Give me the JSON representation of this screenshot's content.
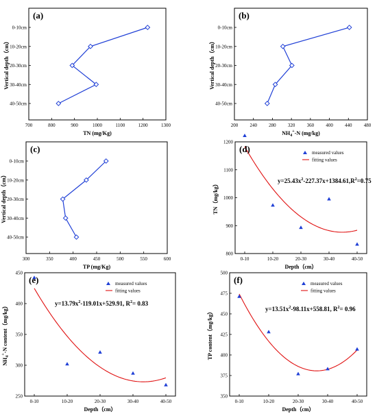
{
  "chart_data": [
    {
      "id": "a",
      "type": "line",
      "title": "(a)",
      "xlabel": "TN (mg/Kg)",
      "ylabel": "Vertical depth（cm）",
      "xlim": [
        700,
        1300
      ],
      "xticks": [
        "700",
        "800",
        "900",
        "1000",
        "1100",
        "1200",
        "1300"
      ],
      "categories": [
        "0-10cm",
        "10-20cm",
        "20-30cm",
        "30-40cm",
        "40-50cm"
      ],
      "values": [
        1220,
        970,
        890,
        995,
        830
      ]
    },
    {
      "id": "b",
      "type": "line",
      "title": "(b)",
      "xlabel": "NH4+-N (mg/kg)",
      "xlabel_main": "NH",
      "xlabel_sub": "4",
      "xlabel_sup": "+",
      "xlabel_rest": "-N (mg/kg)",
      "ylabel": "Vertical depth（cm）",
      "xlim": [
        200,
        480
      ],
      "xticks": [
        "200",
        "240",
        "280",
        "320",
        "360",
        "400",
        "440",
        "480"
      ],
      "categories": [
        "0-10cm",
        "10-20cm",
        "20-30cm",
        "30-40cm",
        "40-50cm"
      ],
      "values": [
        442,
        302,
        321,
        286,
        269
      ]
    },
    {
      "id": "c",
      "type": "line",
      "title": "(c)",
      "xlabel": "TP (mg/Kg)",
      "ylabel": "Vertical depth（cm）",
      "xlim": [
        300,
        600
      ],
      "xticks": [
        "300",
        "350",
        "400",
        "450",
        "500",
        "550",
        "600"
      ],
      "categories": [
        "0-10cm",
        "10-20cm",
        "20-30cm",
        "30-40cm",
        "40-50cm"
      ],
      "values": [
        470,
        428,
        378,
        384,
        407
      ]
    },
    {
      "id": "d",
      "type": "scatter",
      "title": "(d)",
      "xlabel": "Depth（cm）",
      "ylabel": "TN（mg/kg）",
      "ylim": [
        800,
        1200
      ],
      "yticks": [
        "800",
        "900",
        "1000",
        "1100",
        "1200"
      ],
      "categories": [
        "0-10",
        "10-20",
        "20-30",
        "30-40",
        "40-50"
      ],
      "values": [
        1222,
        973,
        893,
        995,
        833
      ],
      "legend": [
        "measured values",
        "fitting values"
      ],
      "equation": {
        "main": "y=25.43x",
        "sup": "2",
        "rest": "-227.37x+1384.61,R",
        "sup2": "2",
        "rest2": "=0.75"
      },
      "fit": {
        "a": 25.43,
        "b": -227.37,
        "c": 1384.61
      }
    },
    {
      "id": "e",
      "type": "scatter",
      "title": "(e)",
      "xlabel": "Depth（cm）",
      "ylabel_main": "NH",
      "ylabel_sub": "4",
      "ylabel_sup": "+",
      "ylabel_rest": "-N content（mg/kg）",
      "ylim": [
        250,
        450
      ],
      "yticks": [
        "250",
        "300",
        "350",
        "400",
        "450"
      ],
      "categories": [
        "0-10",
        "10-20",
        "20-30",
        "30-40",
        "40-50"
      ],
      "values": [
        442,
        302,
        321,
        287,
        268
      ],
      "legend": [
        "measured values",
        "fitting values"
      ],
      "equation": {
        "main": "y=13.79x",
        "sup": "2",
        "rest": "-119.01x+529.91, R",
        "sup2": "2",
        "rest2": "= 0.83"
      },
      "fit": {
        "a": 13.79,
        "b": -119.01,
        "c": 529.91
      }
    },
    {
      "id": "f",
      "type": "scatter",
      "title": "(f)",
      "xlabel": "Depth（cm）",
      "ylabel": "TP content（mg/kg）",
      "ylim": [
        350,
        500
      ],
      "yticks": [
        "350",
        "375",
        "400",
        "425",
        "450",
        "475",
        "500"
      ],
      "categories": [
        "0-10",
        "10-20",
        "20-30",
        "30-40",
        "40-50"
      ],
      "values": [
        471,
        428,
        377,
        383,
        407
      ],
      "legend": [
        "measured values",
        "fitting values"
      ],
      "equation": {
        "main": "y=13.51x",
        "sup": "2",
        "rest": "-98.11x+558.81, R",
        "sup2": "2",
        "rest2": "= 0.96"
      },
      "fit": {
        "a": 13.51,
        "b": -98.11,
        "c": 558.81
      }
    }
  ]
}
